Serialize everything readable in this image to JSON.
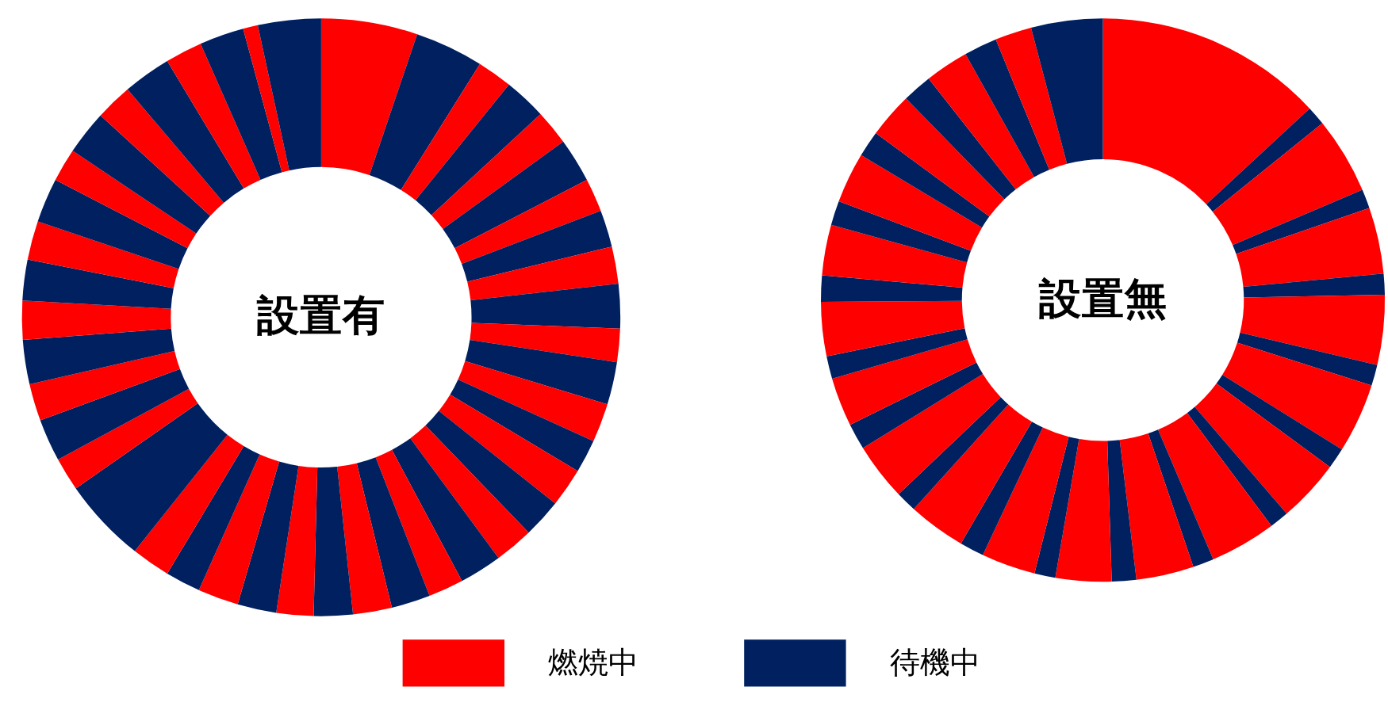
{
  "chart_data": [
    {
      "type": "donut",
      "title": "設置有",
      "categories": [
        null,
        null,
        null,
        null,
        null,
        null,
        null,
        null,
        null,
        null,
        null,
        null,
        null,
        null,
        null,
        null,
        null,
        null,
        null,
        null,
        null,
        null,
        null,
        null,
        null,
        null,
        null,
        null,
        null,
        null,
        null,
        null,
        null,
        null,
        null,
        null,
        null,
        null,
        null,
        null,
        null,
        null,
        null,
        null
      ],
      "values": [
        5.2,
        3.7,
        1.9,
        2.3,
        1.9,
        2.4,
        1.8,
        2.0,
        2.0,
        2.4,
        1.8,
        2.3,
        2.1,
        1.8,
        2.1,
        2.1,
        2.1,
        2.3,
        1.9,
        2.1,
        2.1,
        2.1,
        2.0,
        2.1,
        2.2,
        1.9,
        2.1,
        4.6,
        1.8,
        2.3,
        2.0,
        2.4,
        2.1,
        2.2,
        2.1,
        2.4,
        1.8,
        2.4,
        2.0,
        2.6,
        2.0,
        2.4,
        0.8,
        3.4
      ],
      "colors": [
        "#ff0000",
        "#002060",
        "#ff0000",
        "#002060",
        "#ff0000",
        "#002060",
        "#ff0000",
        "#002060",
        "#ff0000",
        "#002060",
        "#ff0000",
        "#002060",
        "#ff0000",
        "#002060",
        "#ff0000",
        "#002060",
        "#ff0000",
        "#002060",
        "#ff0000",
        "#002060",
        "#ff0000",
        "#002060",
        "#ff0000",
        "#002060",
        "#ff0000",
        "#002060",
        "#ff0000",
        "#002060",
        "#ff0000",
        "#002060",
        "#ff0000",
        "#002060",
        "#ff0000",
        "#002060",
        "#ff0000",
        "#002060",
        "#ff0000",
        "#002060",
        "#ff0000",
        "#002060",
        "#ff0000",
        "#002060",
        "#ff0000",
        "#002060"
      ]
    },
    {
      "type": "donut",
      "title": "設置無",
      "categories": [
        null,
        null,
        null,
        null,
        null,
        null,
        null,
        null,
        null,
        null,
        null,
        null,
        null,
        null,
        null,
        null,
        null,
        null,
        null,
        null,
        null,
        null,
        null,
        null,
        null,
        null,
        null,
        null,
        null,
        null,
        null,
        null,
        null,
        null,
        null,
        null,
        null,
        null
      ],
      "values": [
        13.1,
        1.1,
        4.4,
        1.1,
        3.8,
        1.2,
        4.0,
        1.2,
        4.0,
        1.2,
        3.6,
        1.1,
        3.8,
        1.2,
        3.3,
        1.4,
        3.2,
        1.2,
        3.1,
        1.4,
        3.3,
        1.2,
        3.3,
        1.5,
        2.8,
        1.3,
        3.1,
        1.5,
        2.9,
        1.4,
        2.9,
        1.5,
        2.6,
        1.7,
        2.5,
        1.9,
        2.1,
        4.1
      ],
      "colors": [
        "#ff0000",
        "#002060",
        "#ff0000",
        "#002060",
        "#ff0000",
        "#002060",
        "#ff0000",
        "#002060",
        "#ff0000",
        "#002060",
        "#ff0000",
        "#002060",
        "#ff0000",
        "#002060",
        "#ff0000",
        "#002060",
        "#ff0000",
        "#002060",
        "#ff0000",
        "#002060",
        "#ff0000",
        "#002060",
        "#ff0000",
        "#002060",
        "#ff0000",
        "#002060",
        "#ff0000",
        "#002060",
        "#ff0000",
        "#002060",
        "#ff0000",
        "#002060",
        "#ff0000",
        "#002060",
        "#ff0000",
        "#002060",
        "#ff0000",
        "#002060"
      ]
    },
    {
      "type": "other",
      "categories": [
        "燃焼中",
        "待機中"
      ],
      "colors": [
        "#ff0000",
        "#002060"
      ]
    }
  ]
}
